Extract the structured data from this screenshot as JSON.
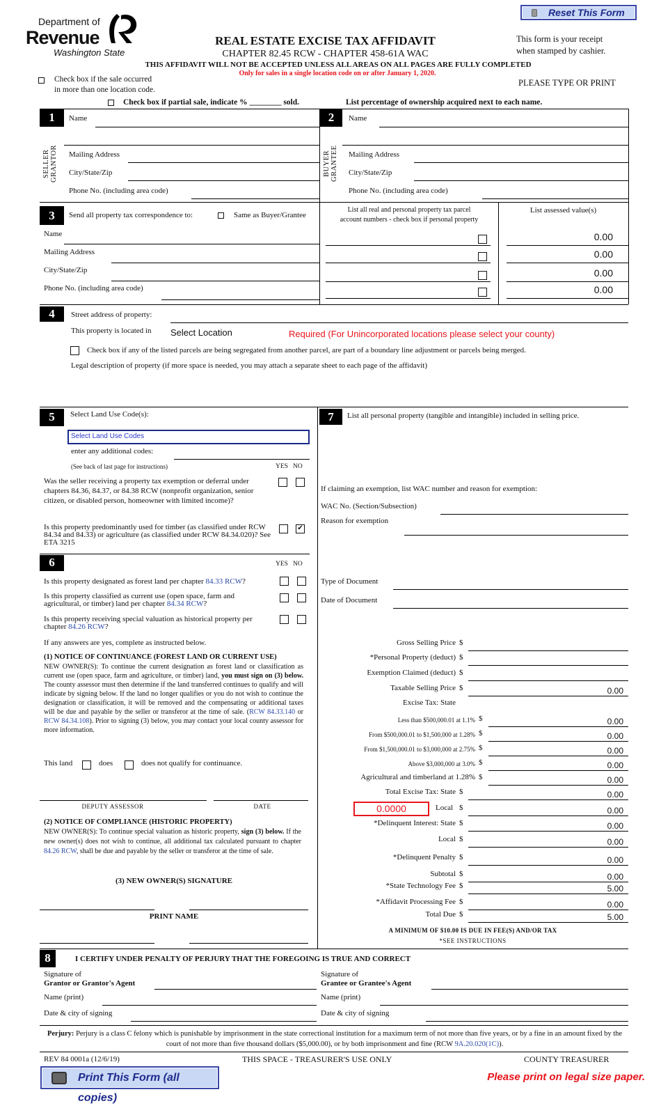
{
  "header": {
    "reset_label": "Reset This Form",
    "logo_dept": "Department of",
    "logo_revenue": "Revenue",
    "logo_state": "Washington State",
    "title": "REAL ESTATE EXCISE TAX AFFIDAVIT",
    "subtitle": "CHAPTER 82.45 RCW - CHAPTER 458-61A WAC",
    "warning": "THIS AFFIDAVIT WILL NOT BE ACCEPTED UNLESS ALL AREAS ON ALL PAGES ARE FULLY COMPLETED",
    "red_note": "Only for sales in a single location code on or after January 1, 2020.",
    "receipt_line1": "This form is your receipt",
    "receipt_line2": "when stamped by cashier.",
    "multi_location_line1": "Check box if the sale occurred",
    "multi_location_line2": "in more than one location code.",
    "please_type": "PLEASE TYPE OR PRINT",
    "partial_sale": "Check box if partial sale, indicate % ________ sold.",
    "list_percentage": "List percentage of ownership acquired next to each name."
  },
  "section1": {
    "number": "1",
    "vertical_1": "SELLER",
    "vertical_2": "GRANTOR",
    "name": "Name",
    "mailing": "Mailing Address",
    "city": "City/State/Zip",
    "phone": "Phone No. (including area code)"
  },
  "section2": {
    "number": "2",
    "vertical_1": "BUYER",
    "vertical_2": "GRANTEE",
    "name": "Name",
    "mailing": "Mailing Address",
    "city": "City/State/Zip",
    "phone": "Phone No. (including area code)"
  },
  "section3": {
    "number": "3",
    "send_to": "Send all property tax correspondence to:",
    "same_as": "Same as Buyer/Grantee",
    "name": "Name",
    "mailing": "Mailing Address",
    "city": "City/State/Zip",
    "phone": "Phone No. (including area code)",
    "parcel_header_1": "List all real and personal property tax parcel",
    "parcel_header_2": "account numbers - check box if personal property",
    "assessed_header": "List assessed value(s)",
    "assessed_values": [
      "0.00",
      "0.00",
      "0.00",
      "0.00"
    ]
  },
  "section4": {
    "number": "4",
    "street": "Street address of property:",
    "located_in": "This property is located in",
    "location_select": "Select Location",
    "required_note": "Required (For Unincorporated locations please select your county)",
    "segregated": "Check box if any of the listed parcels are being segregated from another parcel, are part of a boundary line adjustment or parcels being merged.",
    "legal_description": "Legal description of property (if more space is needed, you may attach a separate sheet to each page of the affidavit)"
  },
  "section5": {
    "number": "5",
    "label": "Select Land Use Code(s):",
    "select_value": "Select Land Use Codes",
    "additional": "enter any additional codes:",
    "see_back": "(See back of last page for instructions)",
    "yes": "YES",
    "no": "NO",
    "q1": "Was the seller receiving a property tax exemption or deferral under chapters 84.36, 84.37, or 84.38 RCW (nonprofit organization, senior citizen, or disabled person, homeowner with limited income)?",
    "q2": "Is this property predominantly used for timber (as classified under RCW 84.34 and 84.33) or agriculture (as classified under RCW 84.34.020)? See ETA 3215",
    "q2_no_checked": true
  },
  "section6": {
    "number": "6",
    "yes": "YES",
    "no": "NO",
    "q1_text": "Is this property designated as forest land per chapter ",
    "q1_link": "84.33 RCW",
    "q2_text": "Is this property classified as current use (open space, farm and agricultural, or timber) land per chapter ",
    "q2_link": "84.34 RCW",
    "q3_text": "Is this property receiving special valuation as historical property per chapter ",
    "q3_link": "84.26 RCW",
    "q_end": "?",
    "if_yes": "If any answers are yes, complete as instructed below.",
    "notice1_title": "(1) NOTICE OF CONTINUANCE (FOREST LAND OR CURRENT USE)",
    "notice1_a": "NEW OWNER(S): To continue the current designation as forest land or classification as current use (open space, farm and agriculture, or timber) land, ",
    "notice1_bold": "you must sign on (3) below.",
    "notice1_c": " The county assessor must then determine if the land transferred continues to qualify and will indicate by signing below. If the land no longer qualifies or you do not wish to continue the designation or classification, it will be removed and the compensating or additional taxes will be due and payable by the seller or transferor at the time of sale. (",
    "notice1_link1": "RCW 84.33.140",
    "notice1_or": " or ",
    "notice1_link2": "RCW 84.34.108",
    "notice1_d": "). Prior to signing (3) below, you may contact your local county assessor for more information.",
    "this_land": "This land",
    "does": "does",
    "does_not": "does not qualify for continuance.",
    "deputy_assessor": "DEPUTY ASSESSOR",
    "date": "DATE",
    "notice2_title": "(2) NOTICE OF COMPLIANCE (HISTORIC PROPERTY)",
    "notice2_a": "NEW OWNER(S): To continue special valuation as historic property, ",
    "notice2_bold": "sign (3) below.",
    "notice2_b": " If the new owner(s) does not wish to continue, all additional tax calculated pursuant to chapter ",
    "notice2_link": "84.26 RCW",
    "notice2_c": ", shall be due and payable by the seller or transferor at the time of sale.",
    "signature_title": "(3) NEW OWNER(S) SIGNATURE",
    "print_name": "PRINT NAME"
  },
  "section7": {
    "number": "7",
    "label": "List all personal property (tangible and intangible) included in selling price.",
    "exemption_intro": "If claiming an exemption, list WAC number and reason for exemption:",
    "wac_no": "WAC No. (Section/Subsection)",
    "reason": "Reason for exemption",
    "type_of_document": "Type of Document",
    "date_of_document": "Date of Document",
    "local_rate": "0.0000",
    "rows": [
      {
        "label": "Gross Selling Price",
        "dollar": "$",
        "value": ""
      },
      {
        "label": "*Personal Property (deduct)",
        "dollar": "$",
        "value": ""
      },
      {
        "label": "Exemption Claimed (deduct)",
        "dollar": "$",
        "value": ""
      },
      {
        "label": "Taxable Selling Price",
        "dollar": "$",
        "value": "0.00"
      },
      {
        "label": "Excise Tax: State",
        "dollar": "",
        "value": ""
      },
      {
        "label": "Less than $500,000.01 at 1.1%",
        "dollar": "$",
        "value": "0.00",
        "small": true
      },
      {
        "label": "From $500,000.01 to $1,500,000 at 1.28%",
        "dollar": "$",
        "value": "0.00",
        "small": true
      },
      {
        "label": "From $1,500,000.01 to $3,000,000 at 2.75%",
        "dollar": "$",
        "value": "0.00",
        "small": true
      },
      {
        "label": "Above $3,000,000 at 3.0%",
        "dollar": "$",
        "value": "0.00",
        "small": true
      },
      {
        "label": "Agricultural and timberland at 1.28%",
        "dollar": "$",
        "value": "0.00",
        "bracket": true
      },
      {
        "label": "Total Excise Tax: State",
        "dollar": "$",
        "value": "0.00"
      },
      {
        "label": "Local",
        "dollar": "$",
        "value": "0.00"
      },
      {
        "label": "*Delinquent Interest: State",
        "dollar": "$",
        "value": "0.00"
      },
      {
        "label": "Local",
        "dollar": "$",
        "value": "0.00"
      },
      {
        "label": "*Delinquent Penalty",
        "dollar": "$",
        "value": "0.00"
      },
      {
        "label": "Subtotal",
        "dollar": "$",
        "value": "0.00"
      },
      {
        "label": "*State Technology Fee",
        "dollar": "$",
        "value": "5.00"
      },
      {
        "label": "*Affidavit Processing Fee",
        "dollar": "$",
        "value": "0.00"
      },
      {
        "label": "Total Due",
        "dollar": "$",
        "value": "5.00"
      }
    ],
    "minimum_note": "A MINIMUM OF $10.00 IS DUE IN FEE(S) AND/OR TAX",
    "see_instructions": "*SEE INSTRUCTIONS"
  },
  "section8": {
    "number": "8",
    "certify": "I CERTIFY UNDER PENALTY OF PERJURY THAT THE FOREGOING IS TRUE AND CORRECT",
    "sig_of": "Signature of",
    "grantor_agent": "Grantor or Grantor's Agent",
    "grantee_agent": "Grantee or Grantee's Agent",
    "name_print": "Name (print)",
    "date_city": "Date & city of signing"
  },
  "footer": {
    "perjury_label": "Perjury:",
    "perjury_text": " Perjury is a class C felony which is punishable by imprisonment in the state correctional institution for a maximum term of not more than five years, or by a fine in an amount fixed by the court of not more than five thousand dollars ($5,000.00), or by both imprisonment and fine (RCW ",
    "perjury_link": "9A.20.020(1C)",
    "perjury_end": ").",
    "form_number": "REV 84 0001a (12/6/19)",
    "treasurer_use": "THIS SPACE - TREASURER'S USE ONLY",
    "county_treasurer": "COUNTY TREASURER",
    "print_label": "Print This Form (all copies)",
    "legal_note": "Please print on legal size paper."
  },
  "colors": {
    "accent_red": "#e8141b",
    "link_blue": "#2a4aa8",
    "button_bg": "#c9d8f5",
    "button_border": "#3a46a8"
  }
}
